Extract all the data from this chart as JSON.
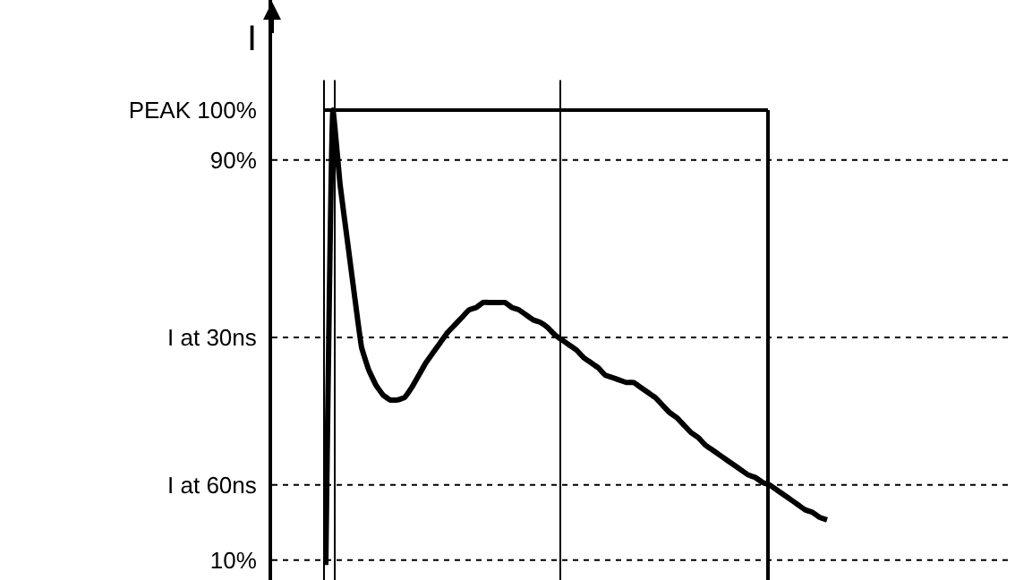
{
  "chart_data": {
    "type": "line",
    "ylabel": "I",
    "categories": [
      null,
      null,
      null,
      null,
      null,
      null,
      null,
      null,
      null,
      null,
      null,
      null,
      null,
      null,
      null,
      null,
      null,
      null,
      null,
      null,
      null,
      null,
      null,
      null,
      null,
      null,
      null,
      null,
      null,
      null,
      null,
      null,
      null,
      null,
      null,
      null,
      null,
      null,
      null,
      null,
      null,
      null,
      null,
      null,
      null,
      null,
      null,
      null,
      null,
      null,
      null,
      null,
      null,
      null,
      null,
      null,
      null,
      null,
      null,
      null,
      null,
      null,
      null,
      null,
      null,
      null,
      null,
      null,
      null,
      null,
      null,
      null,
      null,
      null,
      null,
      null,
      null,
      null,
      null,
      null,
      null,
      null,
      null,
      null,
      null,
      null,
      null,
      null,
      null,
      null,
      null,
      null,
      null,
      null,
      null,
      null,
      null,
      null,
      null,
      null,
      null,
      null,
      null
    ],
    "series": [
      {
        "color": "#000000",
        "values": [
          null,
          null,
          null,
          null,
          null,
          null,
          null,
          9,
          100,
          85,
          74,
          63,
          52.5,
          48,
          45,
          43,
          42,
          42,
          42.5,
          44.5,
          47,
          49.5,
          51.5,
          53.5,
          55.5,
          57,
          58.5,
          60,
          60.5,
          61.5,
          61.5,
          61.5,
          61.5,
          60.5,
          60,
          59,
          58,
          57.5,
          56.5,
          55,
          54,
          53,
          52,
          50.5,
          49.5,
          48.5,
          47,
          46.5,
          46,
          45.5,
          45.5,
          44.5,
          43.5,
          42.5,
          41,
          39.5,
          38.5,
          37,
          35.5,
          34.5,
          33,
          32,
          31,
          30,
          29,
          28,
          27,
          26.5,
          25.5,
          25,
          24,
          23,
          22,
          21,
          20,
          19.5,
          18.5,
          18,
          null,
          null,
          null,
          null,
          null,
          null,
          null,
          null,
          null,
          null,
          null,
          null,
          null,
          null,
          null,
          null,
          null,
          null,
          null,
          null,
          null,
          null,
          null,
          null,
          null
        ]
      }
    ],
    "ylim": [
      6,
      122
    ],
    "yticks": [
      {
        "value": 100,
        "label": "PEAK 100%"
      },
      {
        "value": 90,
        "label": "90%"
      },
      {
        "value": 54.5,
        "label": "I at 30ns"
      },
      {
        "value": 25,
        "label": "I at 60ns"
      },
      {
        "value": 10,
        "label": "10%"
      }
    ],
    "tick_labels": "y",
    "marker": "none",
    "line_style": "solid",
    "ref_lines": [
      {
        "axis": "y",
        "value": 100,
        "color": "#000000",
        "line_style": "solid"
      },
      {
        "axis": "y",
        "value": 90,
        "color": "#000000",
        "line_style": "dotted"
      },
      {
        "axis": "y",
        "value": 54.5,
        "color": "#000000",
        "line_style": "dotted"
      },
      {
        "axis": "y",
        "value": 25,
        "color": "#000000",
        "line_style": "dotted"
      },
      {
        "axis": "y",
        "value": 10,
        "color": "#000000",
        "line_style": "dotted"
      }
    ],
    "legend": false
  }
}
